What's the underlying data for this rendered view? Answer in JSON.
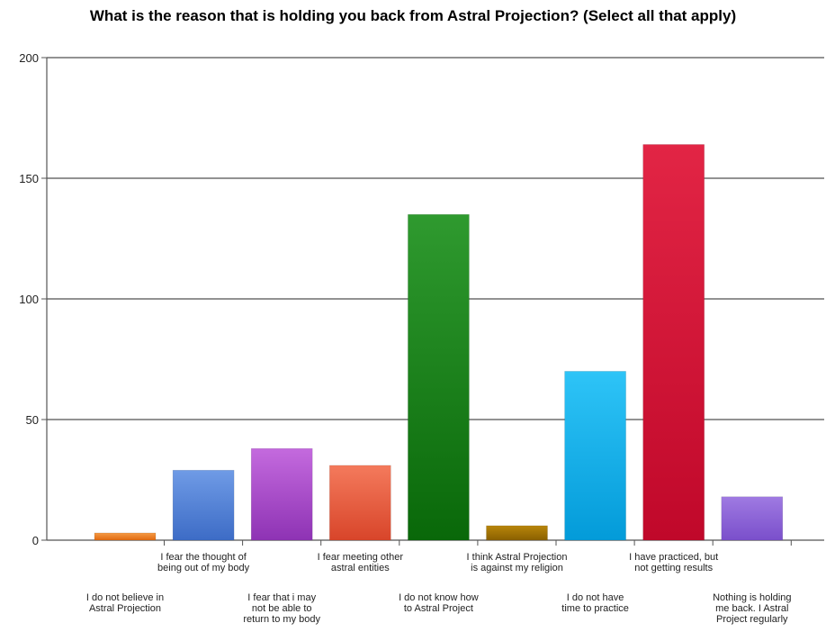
{
  "chart_data": {
    "type": "bar",
    "title": "What is the reason that is holding you back from Astral Projection? (Select all that apply)",
    "xlabel": "",
    "ylabel": "",
    "ylim": [
      0,
      200
    ],
    "yticks": [
      0,
      50,
      100,
      150,
      200
    ],
    "grid": true,
    "categories": [
      [
        "I do not believe in",
        "Astral Projection"
      ],
      [
        "I fear the thought of",
        "being out of my body"
      ],
      [
        "I fear that i may",
        "not be able to",
        "return to my body"
      ],
      [
        "I fear meeting other",
        "astral entities"
      ],
      [
        "I do not know how",
        "to Astral Project"
      ],
      [
        "I think Astral Projection",
        "is against my religion"
      ],
      [
        "I do not have",
        "time to practice"
      ],
      [
        "I have practiced, but",
        "not getting results"
      ],
      [
        "Nothing is holding",
        "me back. I Astral",
        "Project regularly"
      ]
    ],
    "values": [
      3,
      29,
      38,
      31,
      135,
      6,
      70,
      164,
      18
    ],
    "colors": [
      [
        "#f59a45",
        "#e06a10"
      ],
      [
        "#6f9be6",
        "#3d6cc6"
      ],
      [
        "#c46ade",
        "#8e33b4"
      ],
      [
        "#f47a5c",
        "#d8452a"
      ],
      [
        "#2f9a2f",
        "#096809"
      ],
      [
        "#b8860b",
        "#8a6000"
      ],
      [
        "#2ec4f7",
        "#039bd9"
      ],
      [
        "#e22545",
        "#c0082a"
      ],
      [
        "#9f7ae2",
        "#7a4fcb"
      ]
    ]
  }
}
